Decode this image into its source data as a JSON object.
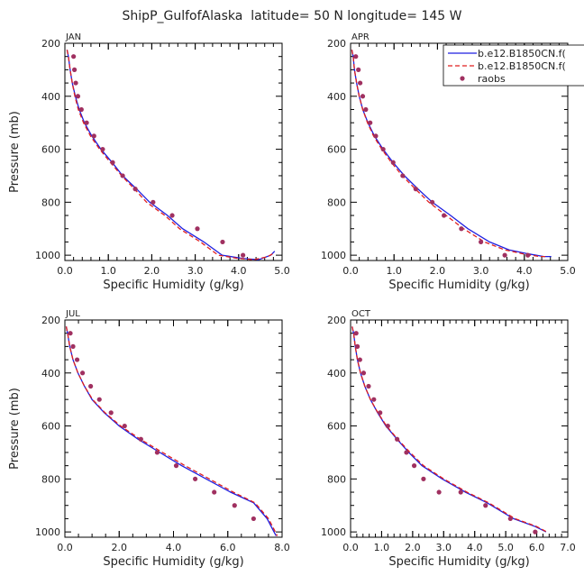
{
  "title": "ShipP_GulfofAlaska  latitude= 50 N longitude= 145 W",
  "legend": {
    "entries": [
      {
        "label": "b.e12.B1850CN.f(",
        "color": "#1f1fe0",
        "style": "solid"
      },
      {
        "label": "b.e12.B1850CN.f(",
        "color": "#e01f1f",
        "style": "dashed"
      },
      {
        "label": "raobs",
        "color": "#a03060",
        "style": "dot"
      }
    ]
  },
  "chart_data": [
    {
      "type": "line",
      "panel_label": "JAN",
      "xlabel": "Specific Humidity (g/kg)",
      "ylabel": "Pressure (mb)",
      "xlim": [
        0,
        5
      ],
      "ylim": [
        200,
        1020
      ],
      "xticks": [
        "0.0",
        "1.0",
        "2.0",
        "3.0",
        "4.0",
        "5.0"
      ],
      "yticks": [
        "200",
        "400",
        "600",
        "800",
        "1000"
      ],
      "series": [
        {
          "name": "b.e12.B1850CN.f(",
          "color": "#1f1fe0",
          "dash": false,
          "x": [
            0.05,
            0.08,
            0.12,
            0.17,
            0.24,
            0.33,
            0.45,
            0.62,
            0.83,
            1.09,
            1.33,
            1.65,
            1.95,
            2.36,
            2.71,
            3.2,
            3.62,
            4.08,
            4.46,
            4.74,
            4.83
          ],
          "y": [
            225,
            250,
            300,
            350,
            400,
            450,
            500,
            550,
            600,
            650,
            700,
            750,
            800,
            850,
            900,
            950,
            1000,
            1012,
            1017,
            1000,
            985
          ]
        },
        {
          "name": "b.e12.B1850CN.f(",
          "color": "#e01f1f",
          "dash": true,
          "x": [
            0.05,
            0.08,
            0.12,
            0.17,
            0.23,
            0.31,
            0.43,
            0.59,
            0.8,
            1.05,
            1.31,
            1.6,
            1.88,
            2.3,
            2.64,
            3.12,
            3.53,
            3.97,
            4.35,
            4.66,
            4.78
          ],
          "y": [
            225,
            250,
            300,
            350,
            400,
            450,
            500,
            550,
            600,
            650,
            700,
            750,
            800,
            850,
            900,
            950,
            1000,
            1012,
            1017,
            1006,
            995
          ]
        },
        {
          "name": "raobs",
          "color": "#a03060",
          "dots": true,
          "x": [
            0.2,
            0.22,
            0.25,
            0.3,
            0.38,
            0.5,
            0.67,
            0.87,
            1.1,
            1.33,
            1.62,
            2.03,
            2.47,
            3.05,
            3.63,
            4.1
          ],
          "y": [
            250,
            300,
            350,
            400,
            450,
            500,
            550,
            600,
            650,
            700,
            750,
            800,
            850,
            900,
            950,
            1000
          ]
        }
      ]
    },
    {
      "type": "line",
      "panel_label": "APR",
      "xlabel": "Specific Humidity (g/kg)",
      "ylabel": "",
      "xlim": [
        0,
        5
      ],
      "ylim": [
        200,
        1020
      ],
      "xticks": [
        "0.0",
        "1.0",
        "2.0",
        "3.0",
        "4.0",
        "5.0"
      ],
      "yticks": [
        "200",
        "400",
        "600",
        "800",
        "1000"
      ],
      "series": [
        {
          "name": "b.e12.B1850CN.f(",
          "color": "#1f1fe0",
          "dash": false,
          "x": [
            0.03,
            0.06,
            0.09,
            0.14,
            0.2,
            0.28,
            0.4,
            0.55,
            0.75,
            0.98,
            1.24,
            1.55,
            1.88,
            2.3,
            2.7,
            3.2,
            3.65,
            4.1,
            4.45,
            4.62
          ],
          "y": [
            225,
            250,
            300,
            350,
            400,
            450,
            500,
            550,
            600,
            650,
            700,
            750,
            800,
            850,
            900,
            950,
            980,
            995,
            1005,
            1005
          ]
        },
        {
          "name": "b.e12.B1850CN.f(",
          "color": "#e01f1f",
          "dash": true,
          "x": [
            0.03,
            0.06,
            0.09,
            0.14,
            0.2,
            0.28,
            0.39,
            0.53,
            0.72,
            0.94,
            1.19,
            1.49,
            1.8,
            2.2,
            2.6,
            3.08,
            3.55,
            3.98,
            4.35,
            4.52
          ],
          "y": [
            225,
            250,
            300,
            350,
            400,
            450,
            500,
            550,
            600,
            650,
            700,
            750,
            800,
            850,
            900,
            950,
            980,
            995,
            1005,
            1005
          ]
        },
        {
          "name": "raobs",
          "color": "#a03060",
          "dots": true,
          "x": [
            0.12,
            0.18,
            0.22,
            0.28,
            0.35,
            0.45,
            0.58,
            0.75,
            0.98,
            1.2,
            1.5,
            1.88,
            2.15,
            2.55,
            3.0,
            3.55,
            4.08
          ],
          "y": [
            250,
            300,
            350,
            400,
            450,
            500,
            550,
            600,
            650,
            700,
            750,
            800,
            850,
            900,
            950,
            1000,
            1000
          ]
        }
      ]
    },
    {
      "type": "line",
      "panel_label": "JUL",
      "xlabel": "Specific Humidity (g/kg)",
      "ylabel": "Pressure (mb)",
      "xlim": [
        0,
        8
      ],
      "ylim": [
        200,
        1020
      ],
      "xticks": [
        "0.0",
        "2.0",
        "4.0",
        "6.0",
        "8.0"
      ],
      "yticks": [
        "200",
        "400",
        "600",
        "800",
        "1000"
      ],
      "series": [
        {
          "name": "b.e12.B1850CN.f(",
          "color": "#1f1fe0",
          "dash": false,
          "x": [
            0.05,
            0.1,
            0.18,
            0.3,
            0.48,
            0.72,
            1.0,
            1.45,
            2.0,
            2.7,
            3.5,
            4.3,
            5.2,
            6.1,
            6.95,
            7.45,
            7.7,
            7.78
          ],
          "y": [
            225,
            250,
            300,
            350,
            400,
            450,
            500,
            550,
            600,
            650,
            700,
            750,
            800,
            850,
            890,
            950,
            1000,
            1015
          ]
        },
        {
          "name": "b.e12.B1850CN.f(",
          "color": "#e01f1f",
          "dash": true,
          "x": [
            0.05,
            0.1,
            0.18,
            0.3,
            0.48,
            0.72,
            1.02,
            1.48,
            2.05,
            2.78,
            3.6,
            4.42,
            5.32,
            6.2,
            7.0,
            7.5,
            7.75,
            7.82
          ],
          "y": [
            225,
            250,
            300,
            350,
            400,
            450,
            500,
            550,
            600,
            650,
            700,
            750,
            800,
            850,
            890,
            950,
            1000,
            1015
          ]
        },
        {
          "name": "raobs",
          "color": "#a03060",
          "dots": true,
          "x": [
            0.2,
            0.3,
            0.45,
            0.65,
            0.95,
            1.27,
            1.7,
            2.2,
            2.8,
            3.4,
            4.1,
            4.8,
            5.5,
            6.25,
            6.95
          ],
          "y": [
            250,
            300,
            350,
            400,
            450,
            500,
            550,
            600,
            650,
            700,
            750,
            800,
            850,
            900,
            950
          ]
        }
      ]
    },
    {
      "type": "line",
      "panel_label": "OCT",
      "xlabel": "Specific Humidity (g/kg)",
      "ylabel": "",
      "xlim": [
        0,
        7
      ],
      "ylim": [
        200,
        1020
      ],
      "xticks": [
        "0.0",
        "1.0",
        "2.0",
        "3.0",
        "4.0",
        "5.0",
        "6.0",
        "7.0"
      ],
      "yticks": [
        "200",
        "400",
        "600",
        "800",
        "1000"
      ],
      "series": [
        {
          "name": "b.e12.B1850CN.f(",
          "color": "#1f1fe0",
          "dash": false,
          "x": [
            0.05,
            0.1,
            0.15,
            0.22,
            0.32,
            0.46,
            0.64,
            0.87,
            1.14,
            1.5,
            1.88,
            2.3,
            2.95,
            3.7,
            4.4,
            5.25,
            5.95,
            6.3
          ],
          "y": [
            225,
            250,
            300,
            350,
            400,
            450,
            500,
            550,
            600,
            650,
            700,
            750,
            800,
            850,
            890,
            950,
            980,
            1000
          ]
        },
        {
          "name": "b.e12.B1850CN.f(",
          "color": "#e01f1f",
          "dash": true,
          "x": [
            0.05,
            0.1,
            0.15,
            0.22,
            0.32,
            0.46,
            0.64,
            0.88,
            1.16,
            1.52,
            1.92,
            2.35,
            3.0,
            3.75,
            4.45,
            5.3,
            6.0,
            6.32
          ],
          "y": [
            225,
            250,
            300,
            350,
            400,
            450,
            500,
            550,
            600,
            650,
            700,
            750,
            800,
            850,
            890,
            950,
            980,
            1000
          ]
        },
        {
          "name": "raobs",
          "color": "#a03060",
          "dots": true,
          "x": [
            0.18,
            0.22,
            0.3,
            0.42,
            0.58,
            0.75,
            0.95,
            1.2,
            1.5,
            1.8,
            2.05,
            2.35,
            2.85,
            3.55,
            4.35,
            5.15,
            5.95
          ],
          "y": [
            250,
            300,
            350,
            400,
            450,
            500,
            550,
            600,
            650,
            700,
            750,
            800,
            850,
            850,
            900,
            950,
            1000
          ]
        }
      ]
    }
  ]
}
